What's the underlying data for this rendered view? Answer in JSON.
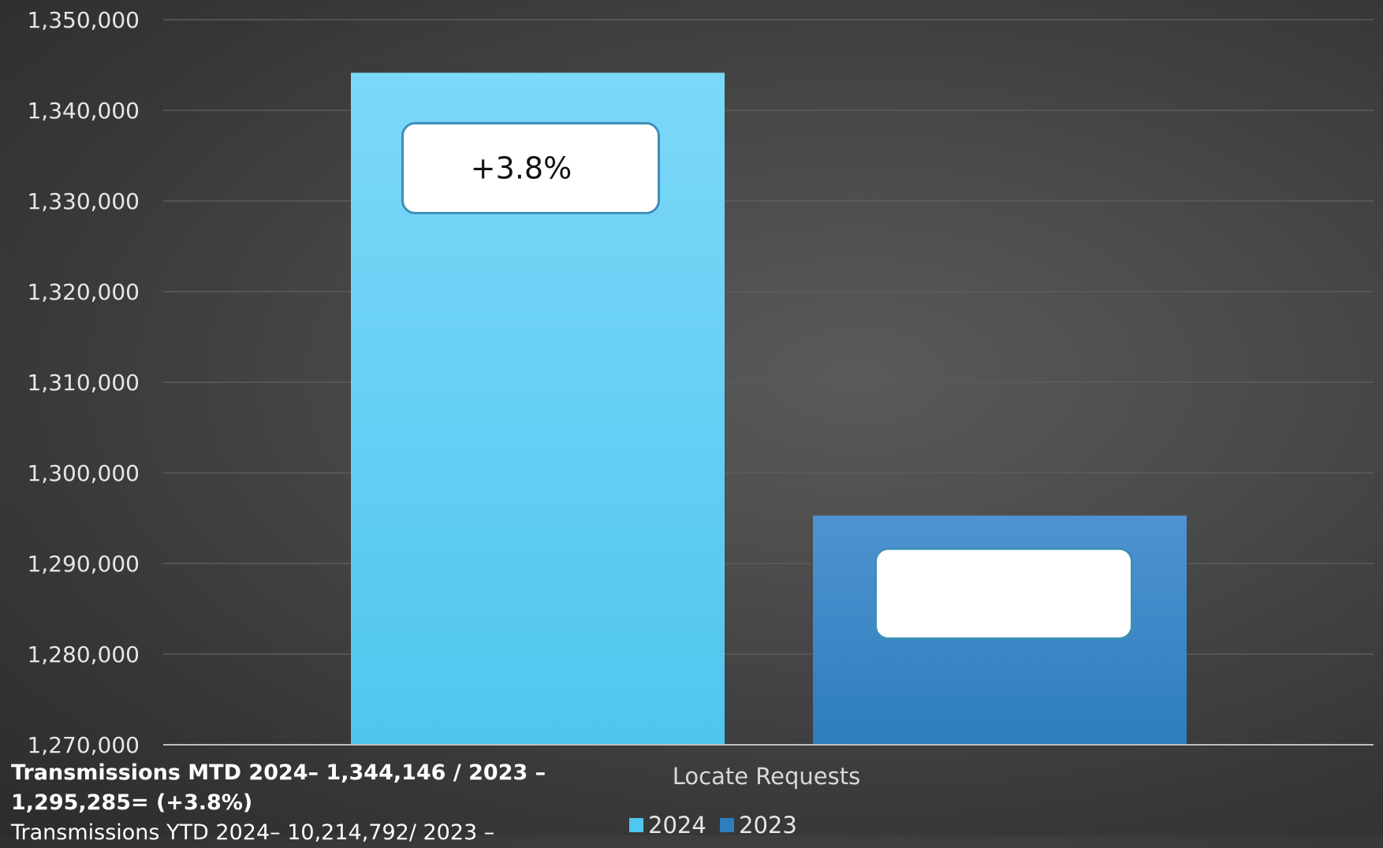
{
  "chart_data": {
    "type": "bar",
    "categories": [
      "Locate Requests"
    ],
    "series": [
      {
        "name": "2024",
        "values": [
          1344146
        ],
        "color_top": "#7dd8f9",
        "color_bottom": "#4fc6ef",
        "callout": "+3.8%"
      },
      {
        "name": "2023",
        "values": [
          1295285
        ],
        "color_top": "#4e93d1",
        "color_bottom": "#2e7dbd",
        "callout": ""
      }
    ],
    "ylim": [
      1270000,
      1350000
    ],
    "yticks": [
      "1,270,000",
      "1,280,000",
      "1,290,000",
      "1,300,000",
      "1,310,000",
      "1,320,000",
      "1,330,000",
      "1,340,000",
      "1,350,000"
    ],
    "ytick_values": [
      1270000,
      1280000,
      1290000,
      1300000,
      1310000,
      1320000,
      1330000,
      1340000,
      1350000
    ],
    "grid": true,
    "legend_position": "bottom"
  },
  "notes": {
    "mtd": "Transmissions MTD 2024– 1,344,146 / 2023 – 1,295,285= (+3.8%)",
    "ytd": "Transmissions YTD 2024– 10,214,792/ 2023 –"
  }
}
